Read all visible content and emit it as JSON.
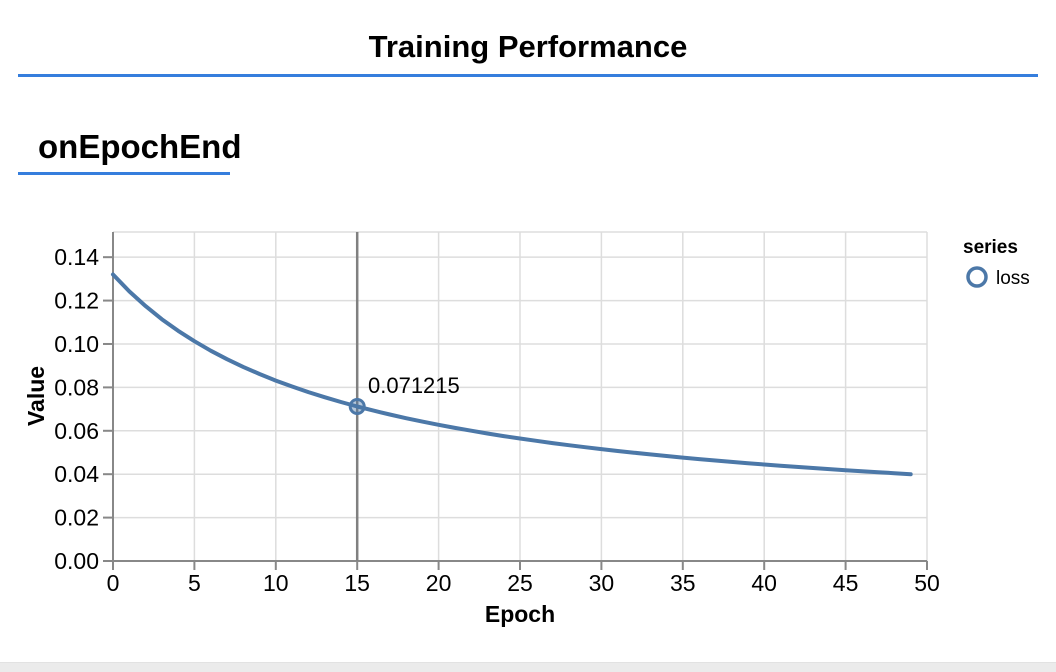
{
  "header": {
    "title": "Training Performance"
  },
  "section": {
    "label": "onEpochEnd"
  },
  "colors": {
    "accent_blue": "#357edd",
    "series_blue": "#4c78a8",
    "rule_gray": "#808080",
    "grid_gray": "#dddddd",
    "axis_gray": "#888888",
    "footer_strip": "#ebebeb"
  },
  "chart_data": {
    "type": "line",
    "title": "",
    "xlabel": "Epoch",
    "ylabel": "Value",
    "xlim": [
      0,
      50
    ],
    "ylim": [
      0,
      0.1516
    ],
    "grid": true,
    "x_ticks": [
      0,
      5,
      10,
      15,
      20,
      25,
      30,
      35,
      40,
      45,
      50
    ],
    "y_ticks": [
      "0.00",
      "0.02",
      "0.04",
      "0.06",
      "0.08",
      "0.10",
      "0.12",
      "0.14"
    ],
    "legend": {
      "title": "series",
      "position": "right",
      "items": [
        {
          "label": "loss",
          "color": "#4c78a8",
          "symbol": "circle-outline"
        }
      ]
    },
    "series": [
      {
        "name": "loss",
        "color": "#4c78a8",
        "x": [
          0,
          1,
          2,
          3,
          4,
          5,
          6,
          7,
          8,
          9,
          10,
          11,
          12,
          13,
          14,
          15,
          16,
          17,
          18,
          19,
          20,
          21,
          22,
          23,
          24,
          25,
          26,
          27,
          28,
          29,
          30,
          31,
          32,
          33,
          34,
          35,
          36,
          37,
          38,
          39,
          40,
          41,
          42,
          43,
          44,
          45,
          46,
          47,
          48,
          49
        ],
        "values": [
          0.132,
          0.124248,
          0.117445,
          0.111428,
          0.106067,
          0.101259,
          0.096925,
          0.092997,
          0.089421,
          0.08615,
          0.083149,
          0.080385,
          0.07783,
          0.075463,
          0.073262,
          0.071215,
          0.069296,
          0.067503,
          0.065821,
          0.06424,
          0.062751,
          0.061346,
          0.060018,
          0.058762,
          0.057571,
          0.05644,
          0.055366,
          0.054343,
          0.053369,
          0.05244,
          0.051553,
          0.050705,
          0.049893,
          0.049116,
          0.048371,
          0.047656,
          0.04697,
          0.04631,
          0.045675,
          0.045065,
          0.044476,
          0.043909,
          0.043362,
          0.042835,
          0.042326,
          0.041833,
          0.041357,
          0.040896,
          0.04045,
          0.040019
        ]
      }
    ],
    "highlight": {
      "series": "loss",
      "x": 15,
      "value": 0.071215,
      "label": "0.071215"
    }
  }
}
